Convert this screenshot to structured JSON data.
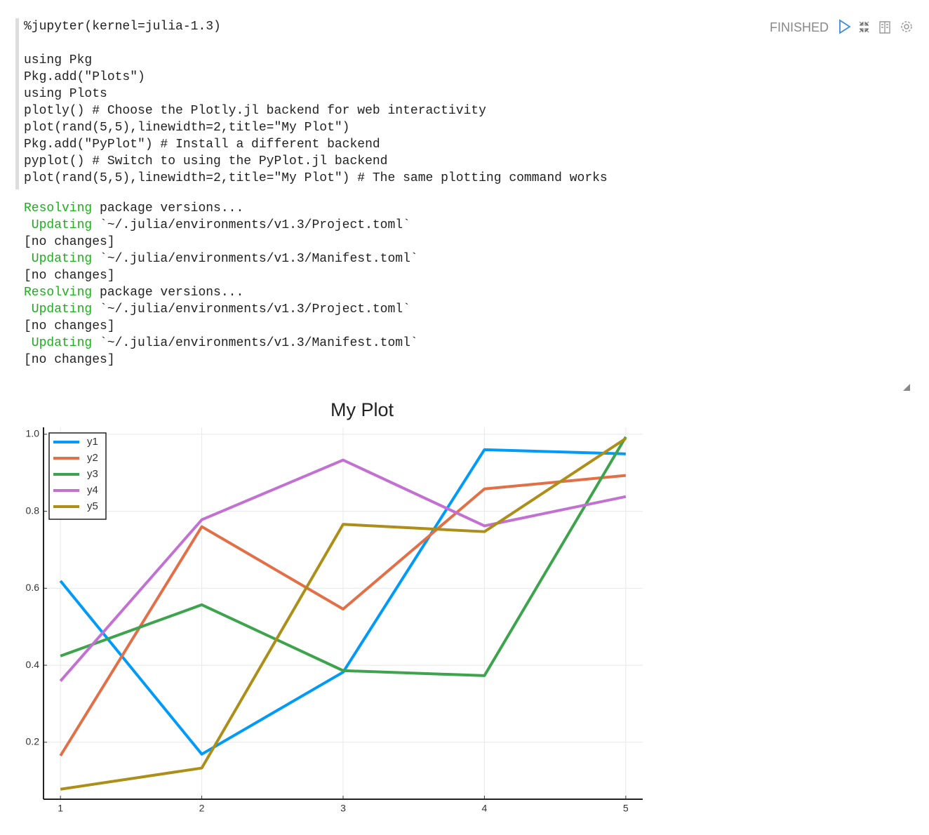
{
  "status": "FINISHED",
  "paragraph": {
    "magic": "%jupyter(kernel=julia-1.3)",
    "code": [
      "using Pkg",
      "Pkg.add(\"Plots\")",
      "using Plots",
      "plotly() # Choose the Plotly.jl backend for web interactivity",
      "plot(rand(5,5),linewidth=2,title=\"My Plot\")",
      "Pkg.add(\"PyPlot\") # Install a different backend",
      "pyplot() # Switch to using the PyPlot.jl backend",
      "plot(rand(5,5),linewidth=2,title=\"My Plot\") # The same plotting command works"
    ],
    "output": [
      {
        "prefix": "Resolving",
        "text": " package versions..."
      },
      {
        "prefix": " Updating",
        "text": " `~/.julia/environments/v1.3/Project.toml`"
      },
      {
        "text": "[no changes]"
      },
      {
        "prefix": " Updating",
        "text": " `~/.julia/environments/v1.3/Manifest.toml`"
      },
      {
        "text": "[no changes]"
      },
      {
        "prefix": "Resolving",
        "text": " package versions..."
      },
      {
        "prefix": " Updating",
        "text": " `~/.julia/environments/v1.3/Project.toml`"
      },
      {
        "text": "[no changes]"
      },
      {
        "prefix": " Updating",
        "text": " `~/.julia/environments/v1.3/Manifest.toml`"
      },
      {
        "text": "[no changes]"
      }
    ]
  },
  "chart_data": {
    "type": "line",
    "title": "My Plot",
    "x": [
      1,
      2,
      3,
      4,
      5
    ],
    "xlim": [
      0.88,
      5.12
    ],
    "xticks": [
      1,
      2,
      3,
      4,
      5
    ],
    "ylim": [
      0.052,
      1.018
    ],
    "yticks": [
      0.2,
      0.4,
      0.6,
      0.8,
      {
        "value": 1,
        "label": "1.0"
      }
    ],
    "grid": true,
    "legend": "top-left",
    "series": [
      {
        "name": "y1",
        "color": "#009af9",
        "values": [
          0.619,
          0.169,
          0.382,
          0.96,
          0.949
        ]
      },
      {
        "name": "y2",
        "color": "#e26f46",
        "values": [
          0.165,
          0.76,
          0.546,
          0.858,
          0.893
        ]
      },
      {
        "name": "y3",
        "color": "#3da44d",
        "values": [
          0.424,
          0.557,
          0.386,
          0.373,
          0.993
        ]
      },
      {
        "name": "y4",
        "color": "#c271d2",
        "values": [
          0.359,
          0.778,
          0.933,
          0.762,
          0.838
        ]
      },
      {
        "name": "y5",
        "color": "#ac8e18",
        "values": [
          0.078,
          0.133,
          0.766,
          0.747,
          0.989
        ]
      }
    ]
  }
}
